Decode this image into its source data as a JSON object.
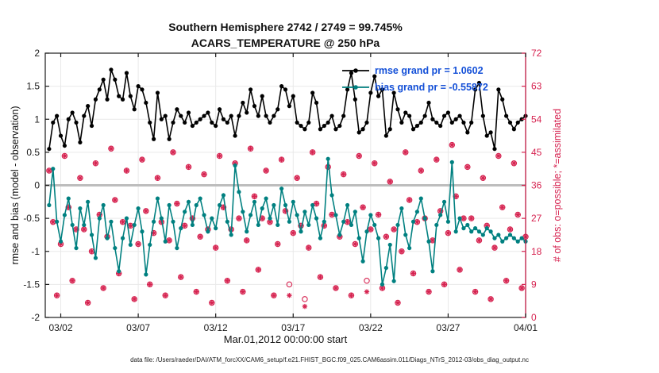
{
  "chart_data": {
    "type": "line",
    "title": "Southern Hemisphere 2742 / 2749 = 99.745%",
    "subtitle": "ACARS_TEMPERATURE @ 250 hPa",
    "xlabel": "Mar.01,2012 00:00:00 start",
    "ylabel_left": "rmse and bias (model - observation)",
    "ylabel_right": "# of obs: o=possible; *=assimilated",
    "ylim_left": [
      -2,
      2
    ],
    "ylim_right": [
      0,
      72
    ],
    "yticks_left": [
      -2,
      -1.5,
      -1,
      -0.5,
      0,
      0.5,
      1,
      1.5,
      2
    ],
    "ytick_labels_left": [
      "-2",
      "-1.5",
      "-1",
      "-0.5",
      "0",
      "0.5",
      "1",
      "1.5",
      "2"
    ],
    "yticks_right": [
      0,
      9,
      18,
      27,
      36,
      45,
      54,
      63,
      72
    ],
    "ytick_labels_right": [
      "0",
      "9",
      "18",
      "27",
      "36",
      "45",
      "54",
      "63",
      "72"
    ],
    "x_range_days": [
      0,
      31
    ],
    "x_tick_days": [
      1,
      6,
      11,
      16,
      21,
      26,
      31
    ],
    "x_tick_labels": [
      "03/02",
      "03/07",
      "03/12",
      "03/17",
      "03/22",
      "03/27",
      "04/01"
    ],
    "x_start_day": 0.25,
    "x_step_days": 0.25,
    "grid": true,
    "legend_position": "top-right-inside",
    "legend": [
      {
        "label": "rmse grand pr = 1.0602",
        "series": "rmse"
      },
      {
        "label": "bias grand pr = -0.55872",
        "series": "bias"
      }
    ],
    "zero_line": {
      "value": 0,
      "color": "#bdbdbd"
    },
    "series": [
      {
        "name": "rmse",
        "axis": "left",
        "style": "line+dot",
        "color": "#000000",
        "values": [
          0.55,
          0.95,
          1.05,
          0.75,
          0.6,
          1.0,
          1.1,
          0.95,
          0.65,
          1.05,
          1.2,
          0.9,
          1.3,
          1.45,
          1.6,
          1.3,
          1.75,
          1.6,
          1.35,
          1.3,
          1.7,
          1.35,
          1.15,
          1.5,
          1.45,
          1.25,
          0.95,
          0.7,
          1.4,
          1.0,
          1.05,
          0.7,
          0.95,
          1.15,
          1.05,
          0.95,
          1.1,
          0.9,
          0.95,
          1.0,
          1.05,
          1.1,
          0.95,
          0.9,
          1.15,
          1.0,
          0.95,
          1.05,
          0.75,
          1.05,
          1.25,
          1.1,
          1.45,
          1.2,
          1.05,
          1.35,
          1.05,
          0.95,
          1.05,
          1.15,
          1.5,
          1.45,
          1.2,
          1.35,
          0.95,
          0.9,
          0.85,
          0.95,
          1.4,
          1.25,
          0.85,
          0.9,
          0.95,
          1.05,
          0.85,
          0.9,
          1.05,
          1.45,
          1.7,
          1.3,
          0.8,
          0.85,
          0.95,
          1.4,
          1.65,
          1.35,
          1.45,
          0.75,
          0.85,
          1.4,
          1.15,
          0.95,
          1.1,
          1.05,
          0.85,
          0.9,
          0.95,
          1.05,
          1.25,
          1.0,
          0.95,
          0.9,
          1.05,
          1.1,
          0.95,
          1.0,
          1.05,
          0.95,
          0.8,
          0.95,
          1.45,
          1.55,
          1.05,
          0.75,
          0.8,
          0.55,
          1.45,
          1.3,
          1.05,
          0.95,
          0.85,
          0.95,
          1.0,
          1.05
        ]
      },
      {
        "name": "bias",
        "axis": "left",
        "style": "line+dot",
        "color": "#008080",
        "values": [
          -0.3,
          0.25,
          -0.55,
          -0.85,
          -0.45,
          -0.2,
          -0.6,
          -0.95,
          -0.35,
          -0.6,
          -0.25,
          -0.75,
          -1.1,
          -0.5,
          -0.3,
          -0.8,
          -0.55,
          -0.95,
          -1.3,
          -0.8,
          -0.5,
          -0.9,
          -0.6,
          -0.35,
          -0.7,
          -1.35,
          -0.9,
          -0.55,
          -0.2,
          -0.5,
          -0.85,
          -0.3,
          -0.55,
          -0.95,
          -0.65,
          -0.4,
          -0.25,
          -0.6,
          -0.3,
          -0.2,
          -0.45,
          -0.7,
          -0.5,
          -0.65,
          -0.3,
          -0.15,
          -0.55,
          -0.75,
          0.3,
          -0.1,
          -0.4,
          -0.7,
          -0.45,
          -0.25,
          -0.6,
          -0.35,
          -0.2,
          -0.5,
          -0.3,
          -0.6,
          -0.05,
          -0.3,
          -0.55,
          -0.25,
          -0.45,
          -0.7,
          -0.4,
          -0.6,
          -0.3,
          -0.5,
          -0.8,
          -0.55,
          0.4,
          -0.15,
          -0.45,
          -0.75,
          -0.55,
          -0.3,
          -0.6,
          -0.4,
          -0.8,
          -1.15,
          -0.7,
          -0.45,
          -0.6,
          -0.8,
          -1.5,
          -1.25,
          -0.9,
          -1.45,
          -0.6,
          -0.35,
          -0.75,
          -0.95,
          -0.55,
          -0.4,
          -0.2,
          -0.5,
          -0.85,
          -1.3,
          -0.6,
          -0.45,
          -0.25,
          -0.55,
          0.35,
          -0.7,
          -0.5,
          -0.65,
          -0.6,
          -0.7,
          -0.65,
          -0.7,
          -0.75,
          -0.65,
          -0.7,
          -0.8,
          -0.75,
          -0.85,
          -0.8,
          -0.75,
          -0.8,
          -0.85,
          -0.8,
          -0.85
        ]
      },
      {
        "name": "possible",
        "axis": "right",
        "style": "scatter",
        "marker": "o",
        "color": "#d62350",
        "values": [
          40,
          26,
          6,
          20,
          44,
          30,
          10,
          24,
          38,
          24,
          4,
          18,
          42,
          28,
          8,
          22,
          46,
          32,
          12,
          26,
          40,
          25,
          5,
          20,
          43,
          29,
          9,
          23,
          38,
          26,
          6,
          21,
          45,
          31,
          11,
          25,
          41,
          27,
          7,
          22,
          39,
          24,
          4,
          19,
          44,
          30,
          10,
          24,
          42,
          27,
          7,
          21,
          46,
          33,
          13,
          27,
          40,
          26,
          6,
          20,
          43,
          29,
          9,
          23,
          38,
          25,
          5,
          19,
          45,
          31,
          11,
          25,
          41,
          28,
          8,
          22,
          39,
          26,
          6,
          20,
          44,
          30,
          10,
          24,
          42,
          28,
          8,
          22,
          37,
          24,
          4,
          18,
          45,
          32,
          12,
          26,
          40,
          27,
          7,
          21,
          43,
          29,
          9,
          23,
          47,
          33,
          13,
          27,
          41,
          27,
          7,
          21,
          38,
          25,
          5,
          19,
          44,
          30,
          10,
          24,
          42,
          28,
          8,
          22
        ]
      },
      {
        "name": "assimilated",
        "axis": "right",
        "style": "scatter",
        "marker": "*",
        "color": "#d62350",
        "values": [
          40,
          26,
          6,
          20,
          44,
          30,
          10,
          24,
          38,
          24,
          4,
          18,
          42,
          28,
          8,
          22,
          46,
          32,
          12,
          26,
          40,
          25,
          5,
          20,
          43,
          29,
          9,
          23,
          38,
          26,
          6,
          21,
          45,
          31,
          11,
          25,
          41,
          27,
          7,
          22,
          39,
          24,
          4,
          19,
          44,
          30,
          10,
          24,
          42,
          27,
          7,
          21,
          46,
          33,
          13,
          27,
          40,
          26,
          6,
          20,
          43,
          29,
          6,
          23,
          38,
          25,
          3,
          19,
          45,
          31,
          11,
          25,
          41,
          28,
          8,
          22,
          39,
          26,
          6,
          20,
          44,
          30,
          7,
          24,
          42,
          28,
          8,
          22,
          37,
          24,
          4,
          18,
          45,
          32,
          12,
          26,
          40,
          27,
          7,
          21,
          43,
          29,
          9,
          23,
          47,
          33,
          13,
          27,
          41,
          27,
          7,
          21,
          38,
          25,
          5,
          19,
          44,
          30,
          10,
          24,
          42,
          28,
          8,
          22
        ]
      }
    ]
  },
  "footer": "data file: /Users/raeder/DAI/ATM_forcXX/CAM6_setup/f.e21.FHIST_BGC.f09_025.CAM6assim.011/Diags_NTrS_2012-03/obs_diag_output.nc",
  "colors": {
    "rmse": "#000000",
    "bias": "#008080",
    "obs": "#d62350",
    "legend_text": "#1450d8",
    "zero_line": "#bdbdbd",
    "grid": "#e9e9e9",
    "axis": "#1a1a1a"
  }
}
